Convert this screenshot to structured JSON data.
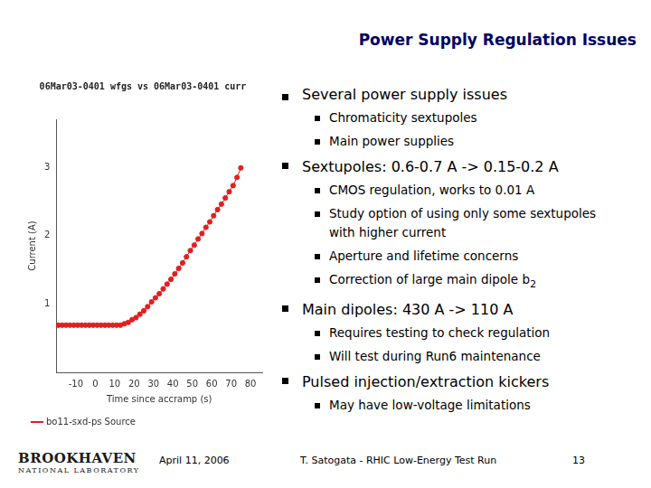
{
  "chart_data": {
    "type": "scatter",
    "title": "06Mar03-0401 wfgs vs 06Mar03-0401 curr",
    "x_label": "Time since accramp (s)",
    "y_label": "Current (A)",
    "x": [
      -19,
      -17,
      -15,
      -13,
      -11,
      -9,
      -7,
      -5,
      -3,
      -1,
      1,
      3,
      5,
      7,
      9,
      11,
      13,
      15,
      17,
      19,
      21,
      23,
      25,
      27,
      29,
      31,
      33,
      35,
      37,
      39,
      41,
      43,
      45,
      47,
      49,
      51,
      53,
      55,
      57,
      59,
      61,
      63,
      65,
      67,
      69,
      71,
      73,
      75
    ],
    "series": [
      {
        "name": "bo11-sxd-ps Source",
        "color": "#e02020",
        "marker": "circle",
        "line_style": "solid",
        "values": [
          0.69,
          0.69,
          0.69,
          0.69,
          0.69,
          0.69,
          0.69,
          0.69,
          0.69,
          0.69,
          0.69,
          0.69,
          0.69,
          0.69,
          0.69,
          0.69,
          0.69,
          0.71,
          0.73,
          0.77,
          0.8,
          0.85,
          0.9,
          0.96,
          1.03,
          1.09,
          1.15,
          1.22,
          1.29,
          1.36,
          1.44,
          1.52,
          1.6,
          1.69,
          1.78,
          1.86,
          1.95,
          2.03,
          2.12,
          2.2,
          2.29,
          2.38,
          2.46,
          2.55,
          2.64,
          2.73,
          2.85,
          2.99
        ]
      }
    ],
    "xlim": [
      -20,
      86
    ],
    "xticks": [
      -10,
      0,
      10,
      20,
      30,
      40,
      50,
      60,
      70,
      80
    ],
    "ylim": [
      0,
      3.7
    ],
    "yticks": [
      1,
      2,
      3
    ],
    "grid": false,
    "legend": "bottom"
  },
  "slide": {
    "title": "Power Supply Regulation Issues",
    "bullets": [
      {
        "text": "Several power supply issues",
        "children": [
          {
            "text": "Chromaticity sextupoles"
          },
          {
            "text": "Main power supplies"
          }
        ]
      },
      {
        "text": "Sextupoles: 0.6-0.7 A -> 0.15-0.2 A",
        "children": [
          {
            "text": "CMOS regulation, works  to 0.01 A"
          },
          {
            "text": "Study option of using only some sextupoles with higher current"
          },
          {
            "text": "Aperture and lifetime concerns"
          },
          {
            "text": "Correction of large main dipole b",
            "subscript": "2"
          }
        ]
      },
      {
        "text": "Main dipoles: 430 A -> 110 A",
        "children": [
          {
            "text": "Requires testing to check regulation"
          },
          {
            "text": "Will test during Run6 maintenance"
          }
        ]
      },
      {
        "text": "Pulsed injection/extraction kickers",
        "children": [
          {
            "text": "May have low-voltage limitations"
          }
        ]
      }
    ],
    "footer": {
      "logo": [
        "BROOKHAVEN",
        "NATIONAL LABORATORY"
      ],
      "date": "April 11, 2006",
      "author": "T. Satogata - RHIC Low-Energy Test Run",
      "page": "13"
    }
  }
}
